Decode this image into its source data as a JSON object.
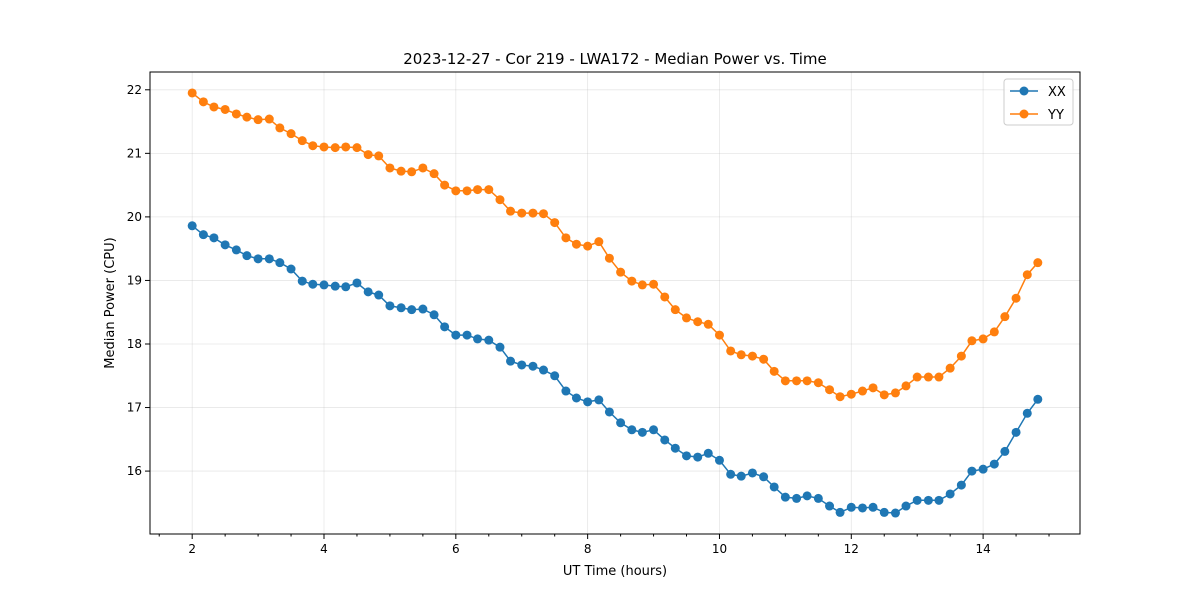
{
  "chart_data": {
    "type": "line",
    "title": "2023-12-27 - Cor 219 - LWA172 - Median Power vs. Time",
    "xlabel": "UT Time (hours)",
    "ylabel": "Median Power (CPU)",
    "xlim": [
      1.36,
      15.47
    ],
    "ylim": [
      15.01,
      22.28
    ],
    "xticks": [
      2,
      4,
      6,
      8,
      10,
      12,
      14
    ],
    "yticks": [
      16,
      17,
      18,
      19,
      20,
      21,
      22
    ],
    "grid": true,
    "legend_position": "top-right",
    "x": [
      2.0,
      2.17,
      2.33,
      2.5,
      2.67,
      2.83,
      3.0,
      3.17,
      3.33,
      3.5,
      3.67,
      3.83,
      4.0,
      4.17,
      4.33,
      4.5,
      4.67,
      4.83,
      5.0,
      5.17,
      5.33,
      5.5,
      5.67,
      5.83,
      6.0,
      6.17,
      6.33,
      6.5,
      6.67,
      6.83,
      7.0,
      7.17,
      7.33,
      7.5,
      7.67,
      7.83,
      8.0,
      8.17,
      8.33,
      8.5,
      8.67,
      8.83,
      9.0,
      9.17,
      9.33,
      9.5,
      9.67,
      9.83,
      10.0,
      10.17,
      10.33,
      10.5,
      10.67,
      10.83,
      11.0,
      11.17,
      11.33,
      11.5,
      11.67,
      11.83,
      12.0,
      12.17,
      12.33,
      12.5,
      12.67,
      12.83,
      13.0,
      13.17,
      13.33,
      13.5,
      13.67,
      13.83,
      14.0,
      14.17,
      14.33,
      14.5,
      14.67,
      14.83
    ],
    "series": [
      {
        "name": "XX",
        "color": "#1f77b4",
        "values": [
          19.86,
          19.72,
          19.67,
          19.56,
          19.48,
          19.39,
          19.34,
          19.34,
          19.28,
          19.18,
          18.99,
          18.94,
          18.93,
          18.91,
          18.9,
          18.96,
          18.82,
          18.77,
          18.6,
          18.57,
          18.54,
          18.55,
          18.46,
          18.27,
          18.14,
          18.14,
          18.08,
          18.06,
          17.95,
          17.73,
          17.67,
          17.65,
          17.59,
          17.5,
          17.26,
          17.15,
          17.09,
          17.12,
          16.93,
          16.76,
          16.65,
          16.61,
          16.65,
          16.49,
          16.36,
          16.24,
          16.22,
          16.28,
          16.17,
          15.95,
          15.92,
          15.97,
          15.91,
          15.75,
          15.59,
          15.57,
          15.61,
          15.57,
          15.45,
          15.35,
          15.43,
          15.42,
          15.43,
          15.35,
          15.34,
          15.45,
          15.54,
          15.54,
          15.54,
          15.64,
          15.78,
          16.0,
          16.03,
          16.11,
          16.31,
          16.61,
          16.91,
          17.13
        ]
      },
      {
        "name": "YY",
        "color": "#ff7f0e",
        "values": [
          21.95,
          21.81,
          21.73,
          21.69,
          21.62,
          21.57,
          21.53,
          21.54,
          21.4,
          21.31,
          21.2,
          21.12,
          21.1,
          21.09,
          21.1,
          21.09,
          20.98,
          20.96,
          20.77,
          20.72,
          20.71,
          20.77,
          20.68,
          20.5,
          20.41,
          20.41,
          20.43,
          20.43,
          20.27,
          20.09,
          20.06,
          20.06,
          20.05,
          19.91,
          19.67,
          19.57,
          19.54,
          19.61,
          19.35,
          19.13,
          18.99,
          18.93,
          18.94,
          18.74,
          18.54,
          18.41,
          18.35,
          18.31,
          18.14,
          17.89,
          17.83,
          17.81,
          17.76,
          17.57,
          17.42,
          17.42,
          17.42,
          17.39,
          17.28,
          17.17,
          17.21,
          17.26,
          17.31,
          17.2,
          17.23,
          17.34,
          17.48,
          17.48,
          17.48,
          17.62,
          17.81,
          18.05,
          18.08,
          18.19,
          18.43,
          18.72,
          19.09,
          19.28
        ]
      }
    ]
  }
}
